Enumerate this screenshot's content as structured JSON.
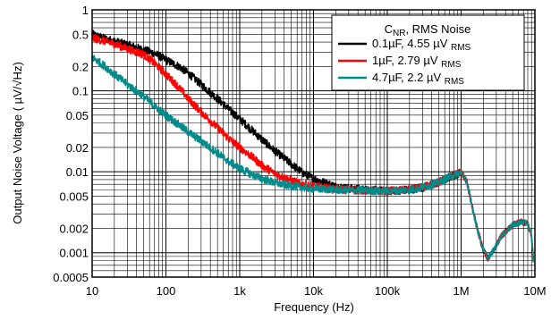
{
  "chart_data": {
    "type": "line",
    "title": "",
    "xlabel": "Frequency (Hz)",
    "ylabel": "Output Noise Voltage ( µV/√Hz)",
    "xscale": "log",
    "yscale": "log",
    "xlim": [
      10,
      10000000
    ],
    "ylim": [
      0.0005,
      1
    ],
    "grid": true,
    "legend_placement": "top-right",
    "x_ticks": [
      {
        "value": 10,
        "label": "10"
      },
      {
        "value": 100,
        "label": "100"
      },
      {
        "value": 1000,
        "label": "1k"
      },
      {
        "value": 10000,
        "label": "10k"
      },
      {
        "value": 100000,
        "label": "100k"
      },
      {
        "value": 1000000,
        "label": "1M"
      },
      {
        "value": 10000000,
        "label": "10M"
      }
    ],
    "y_ticks": [
      {
        "value": 1,
        "label": "1"
      },
      {
        "value": 0.5,
        "label": "0.5"
      },
      {
        "value": 0.2,
        "label": "0.2"
      },
      {
        "value": 0.1,
        "label": "0.1"
      },
      {
        "value": 0.05,
        "label": "0.05"
      },
      {
        "value": 0.02,
        "label": "0.02"
      },
      {
        "value": 0.01,
        "label": "0.01"
      },
      {
        "value": 0.005,
        "label": "0.005"
      },
      {
        "value": 0.002,
        "label": "0.002"
      },
      {
        "value": 0.001,
        "label": "0.001"
      },
      {
        "value": 0.0005,
        "label": "0.0005"
      }
    ],
    "legend": {
      "title_main": "C",
      "title_sub": "NR",
      "title_rest": ", RMS Noise"
    },
    "series": [
      {
        "name": "0.1µF, 4.55 µV",
        "name_sub": "RMS",
        "color": "#000000",
        "points": [
          [
            10,
            0.5
          ],
          [
            15,
            0.44
          ],
          [
            20,
            0.41
          ],
          [
            30,
            0.37
          ],
          [
            50,
            0.32
          ],
          [
            70,
            0.29
          ],
          [
            100,
            0.24
          ],
          [
            150,
            0.2
          ],
          [
            200,
            0.165
          ],
          [
            300,
            0.12
          ],
          [
            500,
            0.08
          ],
          [
            700,
            0.06
          ],
          [
            1000,
            0.045
          ],
          [
            1500,
            0.032
          ],
          [
            2000,
            0.025
          ],
          [
            3000,
            0.018
          ],
          [
            5000,
            0.0125
          ],
          [
            7000,
            0.0098
          ],
          [
            10000,
            0.0082
          ],
          [
            15000,
            0.0072
          ],
          [
            20000,
            0.0066
          ],
          [
            30000,
            0.0062
          ],
          [
            50000,
            0.006
          ],
          [
            70000,
            0.0059
          ],
          [
            100000,
            0.0058
          ],
          [
            150000,
            0.0059
          ],
          [
            200000,
            0.006
          ],
          [
            300000,
            0.0064
          ],
          [
            500000,
            0.0074
          ],
          [
            700000,
            0.0086
          ],
          [
            1000000,
            0.0098
          ],
          [
            1200000,
            0.0075
          ],
          [
            1400000,
            0.0038
          ],
          [
            1700000,
            0.0018
          ],
          [
            2000000,
            0.0011
          ],
          [
            2300000,
            0.00085
          ],
          [
            2700000,
            0.00105
          ],
          [
            3500000,
            0.0016
          ],
          [
            5000000,
            0.0022
          ],
          [
            6500000,
            0.0024
          ],
          [
            8000000,
            0.0023
          ],
          [
            9000000,
            0.0016
          ],
          [
            9500000,
            0.0008
          ]
        ]
      },
      {
        "name": "1µF, 2.79 µV",
        "name_sub": "RMS",
        "color": "#ff0000",
        "points": [
          [
            10,
            0.45
          ],
          [
            15,
            0.41
          ],
          [
            20,
            0.38
          ],
          [
            30,
            0.33
          ],
          [
            50,
            0.28
          ],
          [
            70,
            0.22
          ],
          [
            100,
            0.16
          ],
          [
            150,
            0.11
          ],
          [
            200,
            0.08
          ],
          [
            300,
            0.055
          ],
          [
            500,
            0.035
          ],
          [
            700,
            0.026
          ],
          [
            1000,
            0.02
          ],
          [
            1500,
            0.015
          ],
          [
            2000,
            0.012
          ],
          [
            3000,
            0.0095
          ],
          [
            5000,
            0.0078
          ],
          [
            7000,
            0.007
          ],
          [
            10000,
            0.0066
          ],
          [
            15000,
            0.0063
          ],
          [
            20000,
            0.0061
          ],
          [
            30000,
            0.006
          ],
          [
            50000,
            0.0059
          ],
          [
            70000,
            0.0058
          ],
          [
            100000,
            0.0058
          ],
          [
            150000,
            0.0059
          ],
          [
            200000,
            0.006
          ],
          [
            300000,
            0.0064
          ],
          [
            500000,
            0.0074
          ],
          [
            700000,
            0.0086
          ],
          [
            1000000,
            0.0098
          ],
          [
            1200000,
            0.0075
          ],
          [
            1400000,
            0.0038
          ],
          [
            1700000,
            0.0018
          ],
          [
            2000000,
            0.0011
          ],
          [
            2300000,
            0.00085
          ],
          [
            2700000,
            0.00105
          ],
          [
            3500000,
            0.0016
          ],
          [
            5000000,
            0.0022
          ],
          [
            6500000,
            0.0024
          ],
          [
            8000000,
            0.0023
          ],
          [
            9000000,
            0.0016
          ],
          [
            9500000,
            0.0008
          ]
        ]
      },
      {
        "name": "4.7µF, 2.2 µV",
        "name_sub": "RMS",
        "color": "#008b8b",
        "points": [
          [
            10,
            0.26
          ],
          [
            15,
            0.2
          ],
          [
            20,
            0.16
          ],
          [
            30,
            0.12
          ],
          [
            50,
            0.085
          ],
          [
            70,
            0.065
          ],
          [
            100,
            0.05
          ],
          [
            150,
            0.038
          ],
          [
            200,
            0.031
          ],
          [
            300,
            0.024
          ],
          [
            500,
            0.017
          ],
          [
            700,
            0.0135
          ],
          [
            1000,
            0.011
          ],
          [
            1500,
            0.0092
          ],
          [
            2000,
            0.0082
          ],
          [
            3000,
            0.0073
          ],
          [
            5000,
            0.0067
          ],
          [
            7000,
            0.0064
          ],
          [
            10000,
            0.0062
          ],
          [
            15000,
            0.0061
          ],
          [
            20000,
            0.006
          ],
          [
            30000,
            0.0059
          ],
          [
            50000,
            0.0059
          ],
          [
            70000,
            0.0058
          ],
          [
            100000,
            0.0058
          ],
          [
            150000,
            0.0059
          ],
          [
            200000,
            0.006
          ],
          [
            300000,
            0.0064
          ],
          [
            500000,
            0.0074
          ],
          [
            700000,
            0.0086
          ],
          [
            1000000,
            0.0098
          ],
          [
            1200000,
            0.0075
          ],
          [
            1400000,
            0.0038
          ],
          [
            1700000,
            0.0018
          ],
          [
            2000000,
            0.0011
          ],
          [
            2300000,
            0.00085
          ],
          [
            2700000,
            0.00105
          ],
          [
            3500000,
            0.0016
          ],
          [
            5000000,
            0.0022
          ],
          [
            6500000,
            0.0024
          ],
          [
            8000000,
            0.0023
          ],
          [
            9000000,
            0.0016
          ],
          [
            9500000,
            0.0008
          ]
        ]
      }
    ]
  }
}
